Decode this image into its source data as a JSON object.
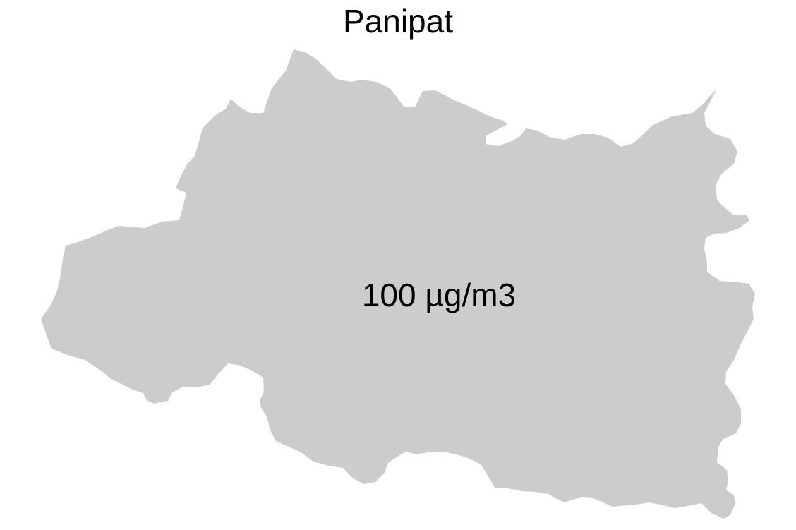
{
  "map": {
    "title": "Panipat",
    "region": {
      "name": "Panipat",
      "value_label": "100 µg/m3",
      "fill_color": "#cccccc"
    }
  }
}
